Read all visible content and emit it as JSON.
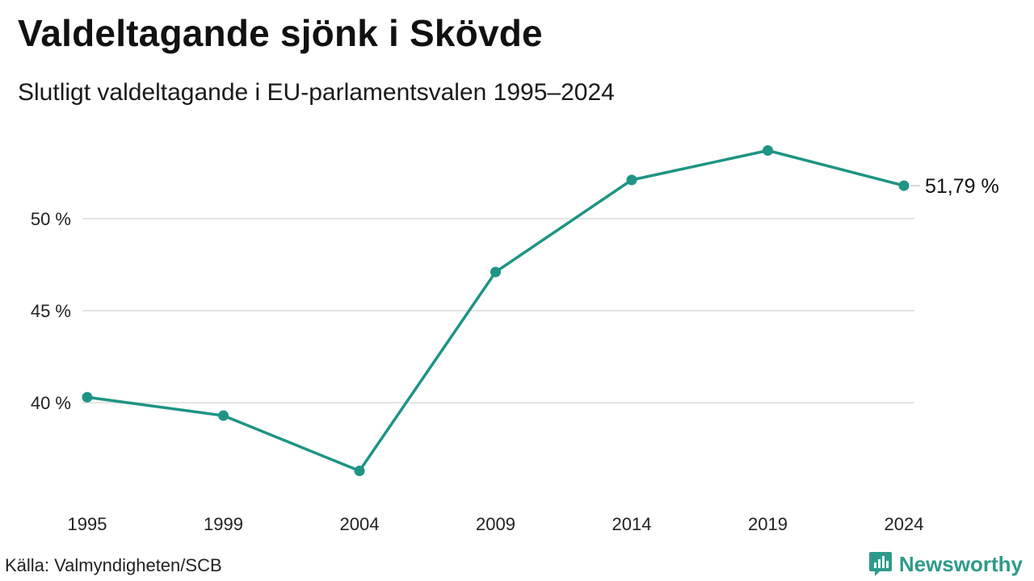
{
  "header": {
    "title": "Valdeltagande sjönk i Skövde",
    "subtitle": "Slutligt valdeltagande i EU-parlamentsvalen 1995–2024"
  },
  "footer": {
    "source": "Källa: Valmyndigheten/SCB",
    "brand": "Newsworthy",
    "brand_color": "#2f9a8a"
  },
  "chart_data": {
    "type": "line",
    "x": [
      "1995",
      "1999",
      "2004",
      "2009",
      "2014",
      "2019",
      "2024"
    ],
    "series": [
      {
        "values": [
          40.3,
          39.3,
          36.3,
          47.1,
          52.1,
          53.7,
          51.79
        ],
        "color": "#1f9484"
      }
    ],
    "yticks": [
      40,
      45,
      50
    ],
    "ytick_labels": [
      "40 %",
      "45 %",
      "50 %"
    ],
    "ylim": [
      34.7,
      55.3
    ],
    "last_value_label": "51,79 %",
    "grid": true,
    "xlabel": "",
    "ylabel": ""
  }
}
